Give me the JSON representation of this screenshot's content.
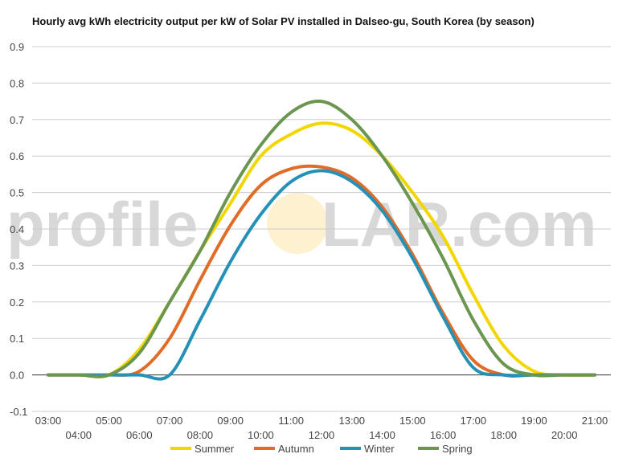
{
  "chart_data": {
    "type": "line",
    "title": "Hourly avg kWh electricity output per kW of Solar PV installed in Dalseo-gu, South Korea (by season)",
    "xlabel": "",
    "ylabel": "",
    "ylim": [
      -0.1,
      0.9
    ],
    "yticks": [
      "0.9",
      "0.8",
      "0.7",
      "0.6",
      "0.5",
      "0.4",
      "0.3",
      "0.2",
      "0.1",
      "0.0",
      "-0.1"
    ],
    "grid": true,
    "legend": "bottom",
    "xticks": [
      "03:00",
      "04:00",
      "05:00",
      "06:00",
      "07:00",
      "08:00",
      "09:00",
      "10:00",
      "11:00",
      "12:00",
      "13:00",
      "14:00",
      "15:00",
      "16:00",
      "17:00",
      "18:00",
      "19:00",
      "20:00",
      "21:00"
    ],
    "x": [
      "03:00",
      "04:00",
      "05:00",
      "06:00",
      "07:00",
      "08:00",
      "09:00",
      "10:00",
      "11:00",
      "12:00",
      "13:00",
      "14:00",
      "15:00",
      "16:00",
      "17:00",
      "18:00",
      "19:00",
      "20:00",
      "21:00"
    ],
    "series": [
      {
        "name": "Summer",
        "color": "#f2d600",
        "values": [
          0.0,
          0.0,
          0.0,
          0.07,
          0.2,
          0.34,
          0.47,
          0.6,
          0.66,
          0.69,
          0.67,
          0.6,
          0.5,
          0.38,
          0.22,
          0.08,
          0.01,
          0.0,
          0.0
        ]
      },
      {
        "name": "Autumn",
        "color": "#e06c28",
        "values": [
          0.0,
          0.0,
          0.0,
          0.01,
          0.1,
          0.26,
          0.41,
          0.52,
          0.565,
          0.57,
          0.54,
          0.46,
          0.33,
          0.17,
          0.04,
          0.0,
          0.0,
          0.0,
          0.0
        ]
      },
      {
        "name": "Winter",
        "color": "#2591b7",
        "values": [
          0.0,
          0.0,
          0.0,
          0.0,
          0.0,
          0.15,
          0.31,
          0.44,
          0.53,
          0.56,
          0.53,
          0.45,
          0.32,
          0.16,
          0.02,
          0.0,
          0.0,
          0.0,
          0.0
        ]
      },
      {
        "name": "Spring",
        "color": "#6b9650",
        "values": [
          0.0,
          0.0,
          0.0,
          0.06,
          0.2,
          0.34,
          0.5,
          0.63,
          0.72,
          0.75,
          0.7,
          0.6,
          0.47,
          0.32,
          0.15,
          0.03,
          0.0,
          0.0,
          0.0
        ]
      }
    ]
  },
  "watermark": {
    "text_left": "profile",
    "text_right": "LAR.com",
    "sun_color": "#fdebbb"
  }
}
